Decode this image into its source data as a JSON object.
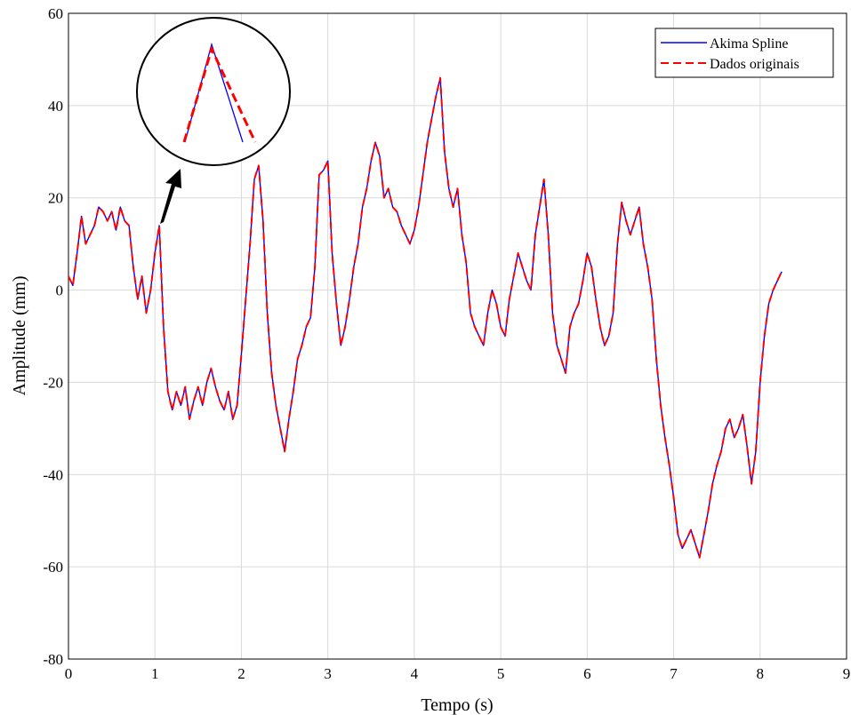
{
  "chart_data": {
    "type": "line",
    "xlabel": "Tempo (s)",
    "ylabel": "Amplitude (mm)",
    "xlim": [
      0,
      9
    ],
    "ylim": [
      -80,
      60
    ],
    "xticks": [
      "0",
      "1",
      "2",
      "3",
      "4",
      "5",
      "6",
      "7",
      "8",
      "9"
    ],
    "yticks": [
      "60",
      "40",
      "20",
      "0",
      "-20",
      "-40",
      "-60",
      "-80"
    ],
    "grid": true,
    "legend_position": "top-right",
    "legend": [
      {
        "label": "Akima Spline",
        "color": "#0000ff",
        "style": "solid"
      },
      {
        "label": "Dados originais",
        "color": "#ff0000",
        "style": "dashed"
      }
    ],
    "x": [
      0.0,
      0.05,
      0.1,
      0.15,
      0.2,
      0.25,
      0.3,
      0.35,
      0.4,
      0.45,
      0.5,
      0.55,
      0.6,
      0.65,
      0.7,
      0.75,
      0.8,
      0.85,
      0.9,
      0.95,
      1.0,
      1.05,
      1.1,
      1.15,
      1.2,
      1.25,
      1.3,
      1.35,
      1.4,
      1.45,
      1.5,
      1.55,
      1.6,
      1.65,
      1.7,
      1.75,
      1.8,
      1.85,
      1.9,
      1.95,
      2.0,
      2.05,
      2.1,
      2.15,
      2.2,
      2.25,
      2.3,
      2.35,
      2.4,
      2.45,
      2.5,
      2.55,
      2.6,
      2.65,
      2.7,
      2.75,
      2.8,
      2.85,
      2.9,
      2.95,
      3.0,
      3.05,
      3.1,
      3.15,
      3.2,
      3.25,
      3.3,
      3.35,
      3.4,
      3.45,
      3.5,
      3.55,
      3.6,
      3.65,
      3.7,
      3.75,
      3.8,
      3.85,
      3.9,
      3.95,
      4.0,
      4.05,
      4.1,
      4.15,
      4.2,
      4.25,
      4.3,
      4.35,
      4.4,
      4.45,
      4.5,
      4.55,
      4.6,
      4.65,
      4.7,
      4.75,
      4.8,
      4.85,
      4.9,
      4.95,
      5.0,
      5.05,
      5.1,
      5.15,
      5.2,
      5.25,
      5.3,
      5.35,
      5.4,
      5.45,
      5.5,
      5.55,
      5.6,
      5.65,
      5.7,
      5.75,
      5.8,
      5.85,
      5.9,
      5.95,
      6.0,
      6.05,
      6.1,
      6.15,
      6.2,
      6.25,
      6.3,
      6.35,
      6.4,
      6.45,
      6.5,
      6.55,
      6.6,
      6.65,
      6.7,
      6.75,
      6.8,
      6.85,
      6.9,
      6.95,
      7.0,
      7.05,
      7.1,
      7.15,
      7.2,
      7.25,
      7.3,
      7.35,
      7.4,
      7.45,
      7.5,
      7.55,
      7.6,
      7.65,
      7.7,
      7.75,
      7.8,
      7.85,
      7.9,
      7.95,
      8.0,
      8.05,
      8.1,
      8.15,
      8.2,
      8.25
    ],
    "series": [
      {
        "name": "Akima Spline",
        "values": [
          3,
          1,
          8,
          16,
          10,
          12,
          14,
          18,
          17,
          15,
          17,
          13,
          18,
          15,
          14,
          5,
          -2,
          3,
          -5,
          0,
          8,
          14,
          -8,
          -22,
          -26,
          -22,
          -25,
          -21,
          -28,
          -24,
          -21,
          -25,
          -20,
          -17,
          -21,
          -24,
          -26,
          -22,
          -28,
          -25,
          -14,
          -2,
          10,
          24,
          27,
          15,
          -5,
          -18,
          -25,
          -30,
          -35,
          -28,
          -22,
          -15,
          -12,
          -8,
          -6,
          5,
          25,
          26,
          28,
          8,
          -3,
          -12,
          -8,
          -2,
          5,
          10,
          18,
          22,
          28,
          32,
          29,
          20,
          22,
          18,
          17,
          14,
          12,
          10,
          13,
          18,
          25,
          32,
          37,
          42,
          46,
          30,
          22,
          18,
          22,
          12,
          6,
          -5,
          -8,
          -10,
          -12,
          -5,
          0,
          -3,
          -8,
          -10,
          -2,
          3,
          8,
          5,
          2,
          0,
          12,
          18,
          24,
          12,
          -5,
          -12,
          -15,
          -18,
          -8,
          -5,
          -3,
          2,
          8,
          5,
          -2,
          -8,
          -12,
          -10,
          -5,
          10,
          19,
          15,
          12,
          15,
          18,
          10,
          5,
          -2,
          -15,
          -25,
          -32,
          -38,
          -45,
          -53,
          -56,
          -54,
          -52,
          -55,
          -58,
          -53,
          -48,
          -42,
          -38,
          -35,
          -30,
          -28,
          -32,
          -30,
          -27,
          -34,
          -42,
          -35,
          -20,
          -10,
          -3,
          0,
          2,
          4
        ]
      },
      {
        "name": "Dados originais",
        "values": [
          3,
          1,
          8,
          16,
          10,
          12,
          14,
          18,
          17,
          15,
          17,
          13,
          18,
          15,
          14,
          5,
          -2,
          3,
          -5,
          0,
          8,
          14,
          -8,
          -22,
          -26,
          -22,
          -25,
          -21,
          -28,
          -24,
          -21,
          -25,
          -20,
          -17,
          -21,
          -24,
          -26,
          -22,
          -28,
          -25,
          -14,
          -2,
          10,
          24,
          27,
          15,
          -5,
          -18,
          -25,
          -30,
          -35,
          -28,
          -22,
          -15,
          -12,
          -8,
          -6,
          5,
          25,
          26,
          28,
          8,
          -3,
          -12,
          -8,
          -2,
          5,
          10,
          18,
          22,
          28,
          32,
          29,
          20,
          22,
          18,
          17,
          14,
          12,
          10,
          13,
          18,
          25,
          32,
          37,
          42,
          46,
          30,
          22,
          18,
          22,
          12,
          6,
          -5,
          -8,
          -10,
          -12,
          -5,
          0,
          -3,
          -8,
          -10,
          -2,
          3,
          8,
          5,
          2,
          0,
          12,
          18,
          24,
          12,
          -5,
          -12,
          -15,
          -18,
          -8,
          -5,
          -3,
          2,
          8,
          5,
          -2,
          -8,
          -12,
          -10,
          -5,
          10,
          19,
          15,
          12,
          15,
          18,
          10,
          5,
          -2,
          -15,
          -25,
          -32,
          -38,
          -45,
          -53,
          -56,
          -54,
          -52,
          -55,
          -58,
          -53,
          -48,
          -42,
          -38,
          -35,
          -30,
          -28,
          -32,
          -30,
          -27,
          -34,
          -42,
          -35,
          -20,
          -10,
          -3,
          0,
          2,
          4
        ]
      }
    ],
    "annotation": {
      "type": "zoom-inset",
      "shape": "triangle-peak"
    }
  }
}
